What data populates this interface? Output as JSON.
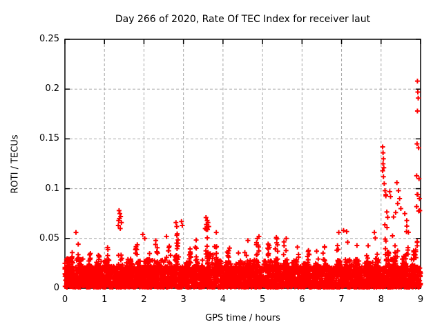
{
  "window": {
    "background": "#ffffff"
  },
  "chart_data": {
    "type": "scatter",
    "title": "Day 266 of 2020, Rate Of TEC Index for receiver laut",
    "xlabel": "GPS time / hours",
    "ylabel": "ROTI / TECUs",
    "xlim": [
      0,
      9
    ],
    "ylim": [
      0,
      0.25
    ],
    "x_ticks": [
      0,
      1,
      2,
      3,
      4,
      5,
      6,
      7,
      8,
      9
    ],
    "x_tick_labels": [
      "0",
      "1",
      "2",
      "3",
      "4",
      "5",
      "6",
      "7",
      "8",
      "9"
    ],
    "y_ticks": [
      0,
      0.05,
      0.1,
      0.15,
      0.2,
      0.25
    ],
    "y_tick_labels": [
      "0",
      "0.05",
      "0.1",
      "0.15",
      "0.2",
      "0.25"
    ],
    "grid": true,
    "legend": "none",
    "axis_color": "#000000",
    "grid_color": "#a6a6a6",
    "marker": {
      "shape": "plus",
      "size": 7,
      "color": "#ff0000",
      "stroke_width": 2
    },
    "series_name": "ROTI",
    "noise_model": {
      "comment": "Dense noise band of thousands of plus markers; envelope entries are [hour_start, dense_band_top_TECU, spike_top_TECU] per 0.25 h bin, values read from the pixels.",
      "seed": 7,
      "points_per_hour": 520,
      "bin_width": 0.25,
      "band_floor": 0.001,
      "band_solid_top": 0.022,
      "envelope": [
        [
          0.0,
          0.03,
          0.04
        ],
        [
          0.25,
          0.03,
          0.048
        ],
        [
          0.5,
          0.027,
          0.036
        ],
        [
          0.75,
          0.026,
          0.036
        ],
        [
          1.0,
          0.029,
          0.042
        ],
        [
          1.25,
          0.032,
          0.06
        ],
        [
          1.5,
          0.029,
          0.044
        ],
        [
          1.75,
          0.028,
          0.048
        ],
        [
          2.0,
          0.029,
          0.05
        ],
        [
          2.25,
          0.029,
          0.048
        ],
        [
          2.5,
          0.031,
          0.053
        ],
        [
          2.75,
          0.033,
          0.06
        ],
        [
          3.0,
          0.026,
          0.042
        ],
        [
          3.25,
          0.029,
          0.05
        ],
        [
          3.5,
          0.035,
          0.062
        ],
        [
          3.75,
          0.029,
          0.052
        ],
        [
          4.0,
          0.027,
          0.042
        ],
        [
          4.25,
          0.028,
          0.046
        ],
        [
          4.5,
          0.028,
          0.048
        ],
        [
          4.75,
          0.029,
          0.05
        ],
        [
          5.0,
          0.028,
          0.046
        ],
        [
          5.25,
          0.03,
          0.05
        ],
        [
          5.5,
          0.029,
          0.05
        ],
        [
          5.75,
          0.028,
          0.046
        ],
        [
          6.0,
          0.025,
          0.038
        ],
        [
          6.25,
          0.025,
          0.038
        ],
        [
          6.5,
          0.026,
          0.042
        ],
        [
          6.75,
          0.028,
          0.052
        ],
        [
          7.0,
          0.029,
          0.054
        ],
        [
          7.25,
          0.029,
          0.048
        ],
        [
          7.5,
          0.027,
          0.044
        ],
        [
          7.75,
          0.03,
          0.054
        ],
        [
          8.0,
          0.038,
          0.095
        ],
        [
          8.25,
          0.038,
          0.09
        ],
        [
          8.5,
          0.036,
          0.075
        ],
        [
          8.75,
          0.042,
          0.1
        ]
      ]
    },
    "outlier_points": [
      [
        0.28,
        0.056
      ],
      [
        1.35,
        0.063
      ],
      [
        1.36,
        0.068
      ],
      [
        1.37,
        0.078
      ],
      [
        1.38,
        0.07
      ],
      [
        1.39,
        0.075
      ],
      [
        1.4,
        0.06
      ],
      [
        1.41,
        0.072
      ],
      [
        1.43,
        0.066
      ],
      [
        1.97,
        0.054
      ],
      [
        2.02,
        0.05
      ],
      [
        2.3,
        0.048
      ],
      [
        2.57,
        0.052
      ],
      [
        2.81,
        0.066
      ],
      [
        2.83,
        0.062
      ],
      [
        2.95,
        0.067
      ],
      [
        2.97,
        0.063
      ],
      [
        3.55,
        0.06
      ],
      [
        3.57,
        0.071
      ],
      [
        3.58,
        0.064
      ],
      [
        3.6,
        0.068
      ],
      [
        3.61,
        0.059
      ],
      [
        3.62,
        0.066
      ],
      [
        3.64,
        0.062
      ],
      [
        3.83,
        0.056
      ],
      [
        4.63,
        0.048
      ],
      [
        4.91,
        0.052
      ],
      [
        5.35,
        0.051
      ],
      [
        5.6,
        0.05
      ],
      [
        6.93,
        0.056
      ],
      [
        7.05,
        0.058
      ],
      [
        7.13,
        0.057
      ],
      [
        7.83,
        0.056
      ],
      [
        8.04,
        0.142
      ],
      [
        8.05,
        0.136
      ],
      [
        8.06,
        0.13
      ],
      [
        8.05,
        0.125
      ],
      [
        8.07,
        0.121
      ],
      [
        8.04,
        0.118
      ],
      [
        8.06,
        0.112
      ],
      [
        8.08,
        0.105
      ],
      [
        8.1,
        0.098
      ],
      [
        8.12,
        0.094
      ],
      [
        8.22,
        0.097
      ],
      [
        8.24,
        0.092
      ],
      [
        8.37,
        0.076
      ],
      [
        8.4,
        0.106
      ],
      [
        8.42,
        0.085
      ],
      [
        8.44,
        0.098
      ],
      [
        8.47,
        0.09
      ],
      [
        8.5,
        0.08
      ],
      [
        8.6,
        0.075
      ],
      [
        8.65,
        0.068
      ],
      [
        8.9,
        0.113
      ],
      [
        8.9,
        0.082
      ],
      [
        8.91,
        0.145
      ],
      [
        8.92,
        0.208
      ],
      [
        8.92,
        0.178
      ],
      [
        8.93,
        0.197
      ],
      [
        8.93,
        0.094
      ],
      [
        8.94,
        0.191
      ],
      [
        8.95,
        0.141
      ],
      [
        8.96,
        0.11
      ],
      [
        8.97,
        0.09
      ],
      [
        8.98,
        0.078
      ]
    ]
  }
}
